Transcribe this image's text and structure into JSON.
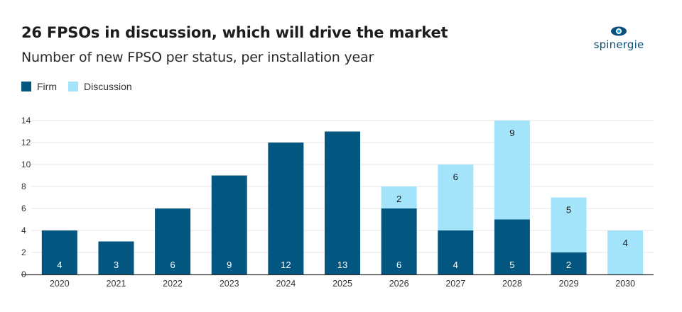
{
  "header": {
    "title": "26 FPSOs in discussion, which will drive the market",
    "subtitle": "Number of new FPSO per status, per installation year"
  },
  "logo": {
    "text": "spinergie",
    "icon": "eye-icon"
  },
  "colors": {
    "firm": "#02567f",
    "discussion": "#a3e4fb",
    "grid": "#e6e6e6",
    "label_on_dark": "#ffffff",
    "label_on_light": "#1a1a1a"
  },
  "chart_data": {
    "type": "bar",
    "stacked": true,
    "title": "26 FPSOs in discussion, which will drive the market",
    "subtitle": "Number of new FPSO per status, per installation year",
    "categories": [
      "2020",
      "2021",
      "2022",
      "2023",
      "2024",
      "2025",
      "2026",
      "2027",
      "2028",
      "2029",
      "2030"
    ],
    "series": [
      {
        "name": "Firm",
        "values": [
          4,
          3,
          6,
          9,
          12,
          13,
          6,
          4,
          5,
          2,
          0
        ]
      },
      {
        "name": "Discussion",
        "values": [
          0,
          0,
          0,
          0,
          0,
          0,
          2,
          6,
          9,
          5,
          4
        ]
      }
    ],
    "ylim": [
      0,
      14
    ],
    "yticks": [
      "0",
      "2",
      "4",
      "6",
      "8",
      "10",
      "12",
      "14"
    ],
    "grid": true,
    "legend": "top-left"
  }
}
